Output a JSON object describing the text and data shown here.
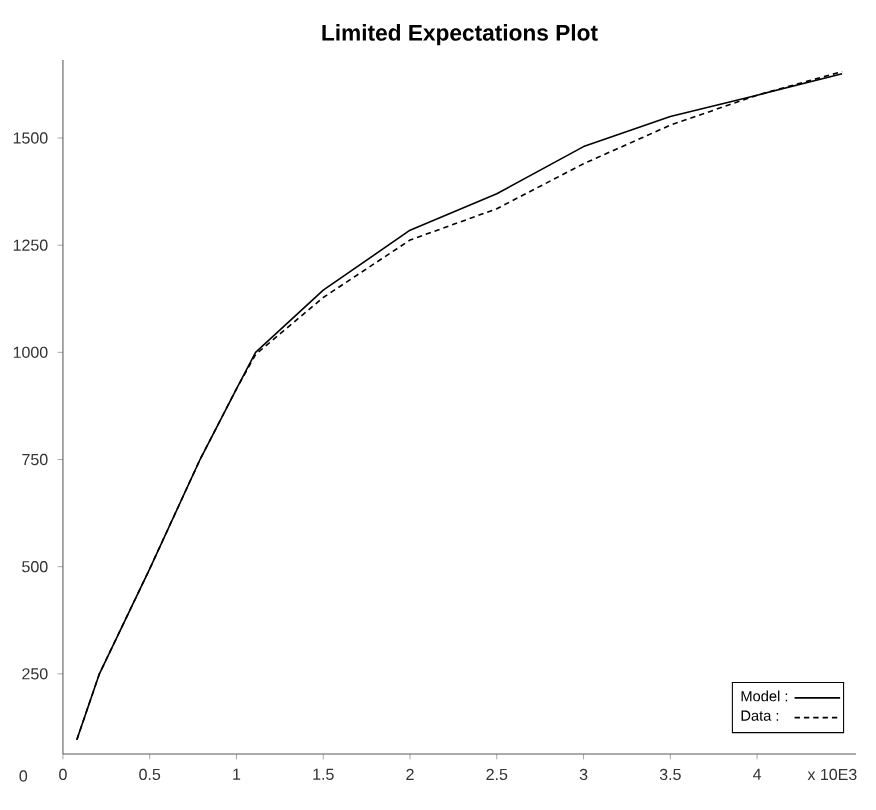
{
  "chart_data": {
    "type": "line",
    "title": "Limited Expectations Plot",
    "xlabel": "x 10E3",
    "annotations": [
      "0"
    ],
    "xlim": [
      0,
      4.57
    ],
    "ylim": [
      63,
      1682
    ],
    "xticks": [
      0,
      0.5,
      1,
      1.5,
      2,
      2.5,
      3,
      3.5,
      4
    ],
    "yticks": [
      250,
      500,
      750,
      1000,
      1250,
      1500
    ],
    "legend": "bottom right",
    "grid": false,
    "marker": "none",
    "series": [
      {
        "name": "Model :",
        "color": "#000000",
        "line_style": "solid",
        "x": [
          0.08,
          0.21,
          0.5,
          0.79,
          1.0,
          1.11,
          1.5,
          2.0,
          2.5,
          3.0,
          3.5,
          4.0,
          4.49
        ],
        "values": [
          96,
          250,
          495,
          750,
          915,
          1000,
          1145,
          1285,
          1370,
          1480,
          1550,
          1600,
          1650
        ]
      },
      {
        "name": "Data :",
        "color": "#000000",
        "line_style": "dashed",
        "x": [
          0.08,
          0.21,
          0.5,
          0.79,
          1.0,
          1.11,
          1.5,
          2.0,
          2.5,
          3.0,
          3.5,
          4.0,
          4.49
        ],
        "values": [
          96,
          250,
          495,
          750,
          915,
          995,
          1128,
          1262,
          1335,
          1440,
          1530,
          1600,
          1655
        ]
      }
    ]
  }
}
